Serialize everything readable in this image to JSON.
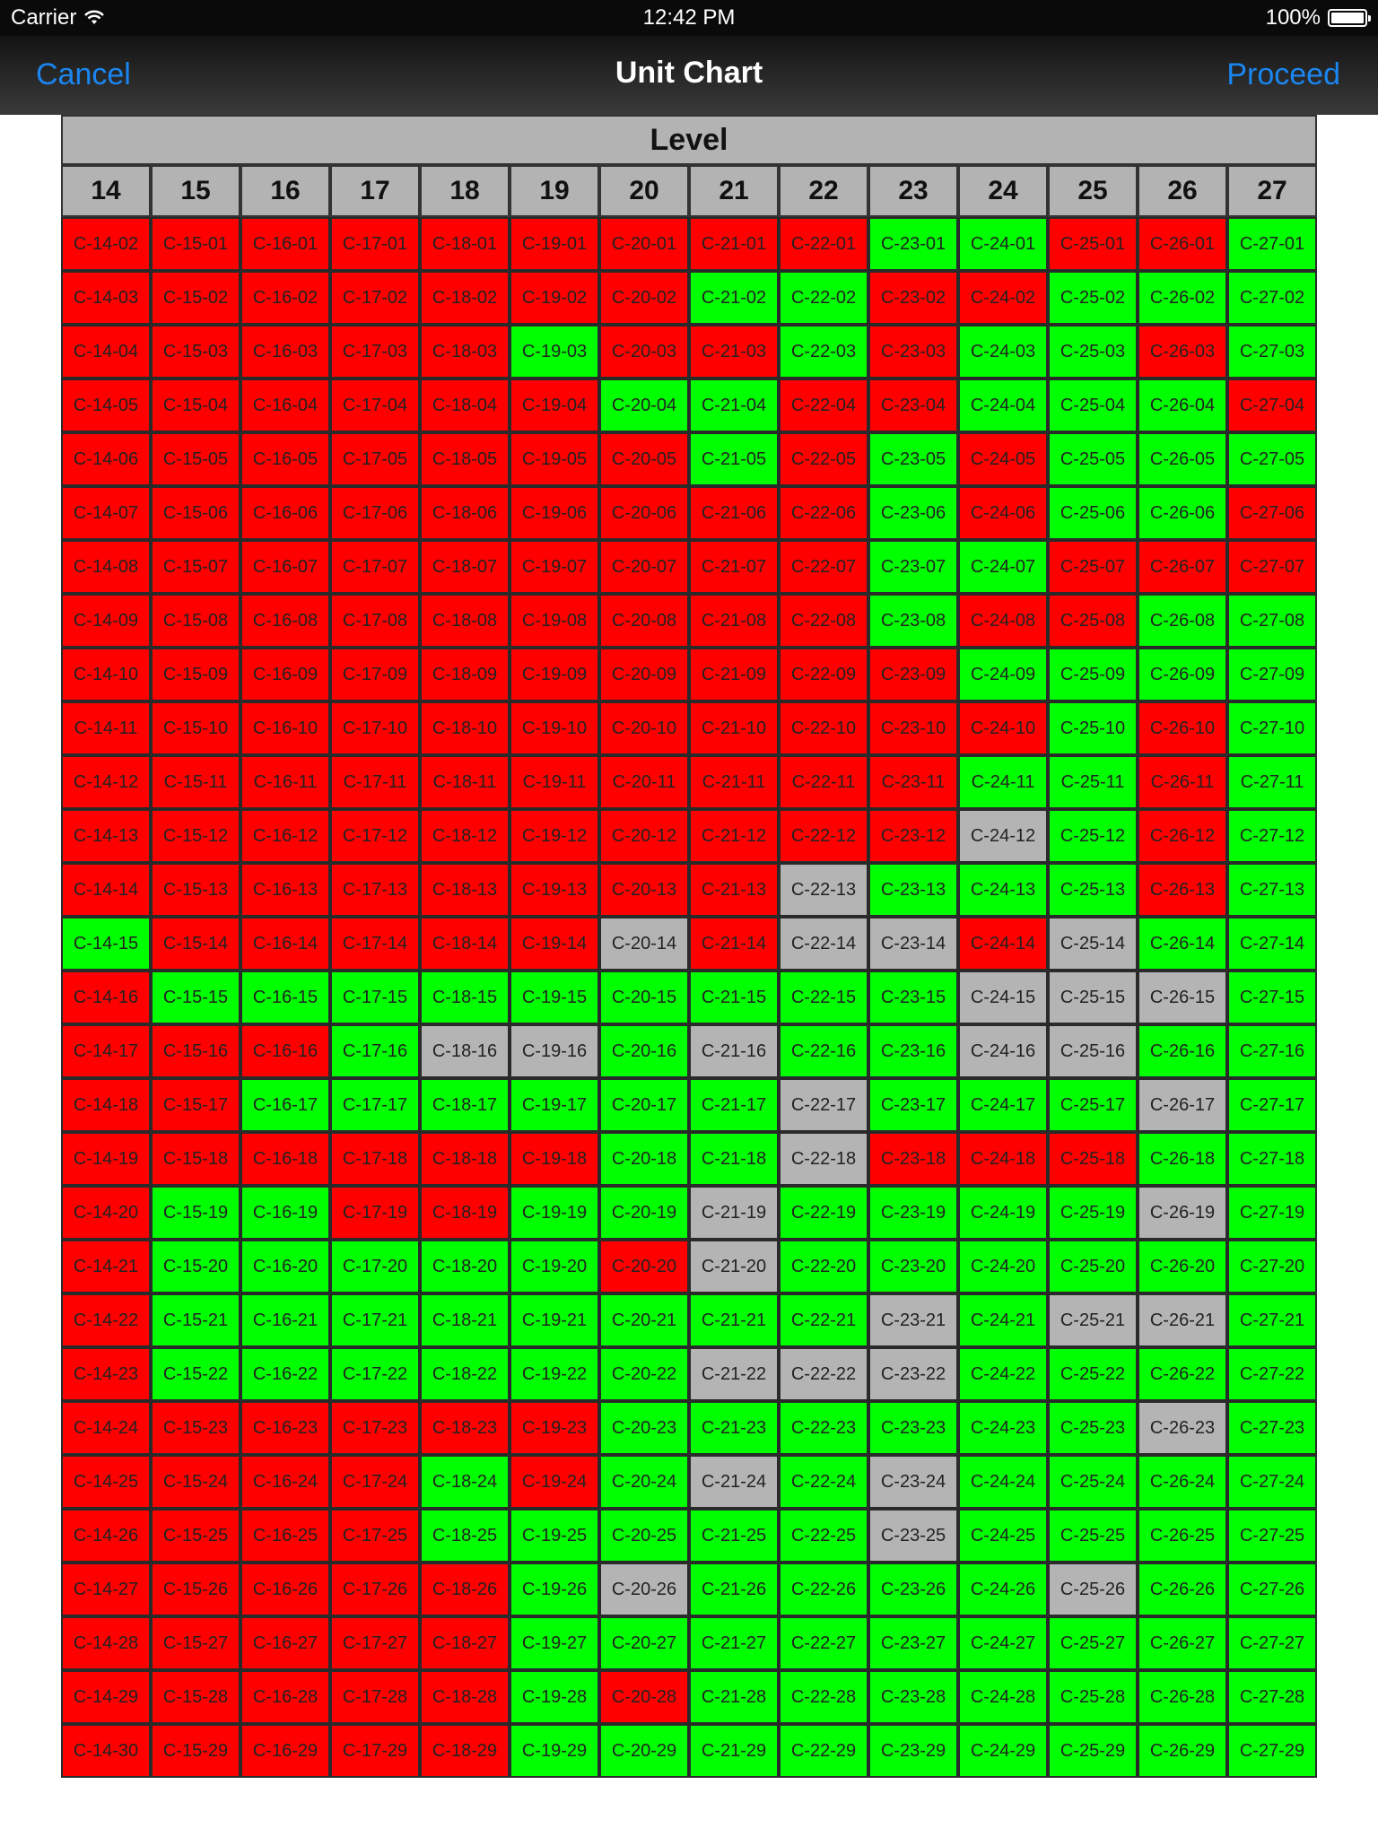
{
  "status_bar": {
    "carrier": "Carrier",
    "time": "12:42 PM",
    "battery": "100%"
  },
  "nav": {
    "cancel": "Cancel",
    "title": "Unit Chart",
    "proceed": "Proceed"
  },
  "chart": {
    "header": "Level",
    "columns": [
      "14",
      "15",
      "16",
      "17",
      "18",
      "19",
      "20",
      "21",
      "22",
      "23",
      "24",
      "25",
      "26",
      "27"
    ],
    "status_legend": {
      "r": "#ff0000",
      "g": "#00ff00",
      "y": "#b4b4b4"
    },
    "rows": [
      {
        "units": [
          "C-14-02",
          "C-15-01",
          "C-16-01",
          "C-17-01",
          "C-18-01",
          "C-19-01",
          "C-20-01",
          "C-21-01",
          "C-22-01",
          "C-23-01",
          "C-24-01",
          "C-25-01",
          "C-26-01",
          "C-27-01"
        ],
        "status": "rrrrrrrrrggrrg"
      },
      {
        "units": [
          "C-14-03",
          "C-15-02",
          "C-16-02",
          "C-17-02",
          "C-18-02",
          "C-19-02",
          "C-20-02",
          "C-21-02",
          "C-22-02",
          "C-23-02",
          "C-24-02",
          "C-25-02",
          "C-26-02",
          "C-27-02"
        ],
        "status": "rrrrrrrggrrggg"
      },
      {
        "units": [
          "C-14-04",
          "C-15-03",
          "C-16-03",
          "C-17-03",
          "C-18-03",
          "C-19-03",
          "C-20-03",
          "C-21-03",
          "C-22-03",
          "C-23-03",
          "C-24-03",
          "C-25-03",
          "C-26-03",
          "C-27-03"
        ],
        "status": "rrrrrgrrgrggrg"
      },
      {
        "units": [
          "C-14-05",
          "C-15-04",
          "C-16-04",
          "C-17-04",
          "C-18-04",
          "C-19-04",
          "C-20-04",
          "C-21-04",
          "C-22-04",
          "C-23-04",
          "C-24-04",
          "C-25-04",
          "C-26-04",
          "C-27-04"
        ],
        "status": "rrrrrrggrrgggr"
      },
      {
        "units": [
          "C-14-06",
          "C-15-05",
          "C-16-05",
          "C-17-05",
          "C-18-05",
          "C-19-05",
          "C-20-05",
          "C-21-05",
          "C-22-05",
          "C-23-05",
          "C-24-05",
          "C-25-05",
          "C-26-05",
          "C-27-05"
        ],
        "status": "rrrrrrrgrgrggg"
      },
      {
        "units": [
          "C-14-07",
          "C-15-06",
          "C-16-06",
          "C-17-06",
          "C-18-06",
          "C-19-06",
          "C-20-06",
          "C-21-06",
          "C-22-06",
          "C-23-06",
          "C-24-06",
          "C-25-06",
          "C-26-06",
          "C-27-06"
        ],
        "status": "rrrrrrrrrgrggr"
      },
      {
        "units": [
          "C-14-08",
          "C-15-07",
          "C-16-07",
          "C-17-07",
          "C-18-07",
          "C-19-07",
          "C-20-07",
          "C-21-07",
          "C-22-07",
          "C-23-07",
          "C-24-07",
          "C-25-07",
          "C-26-07",
          "C-27-07"
        ],
        "status": "rrrrrrrrrggrrr"
      },
      {
        "units": [
          "C-14-09",
          "C-15-08",
          "C-16-08",
          "C-17-08",
          "C-18-08",
          "C-19-08",
          "C-20-08",
          "C-21-08",
          "C-22-08",
          "C-23-08",
          "C-24-08",
          "C-25-08",
          "C-26-08",
          "C-27-08"
        ],
        "status": "rrrrrrrrrgrrgg"
      },
      {
        "units": [
          "C-14-10",
          "C-15-09",
          "C-16-09",
          "C-17-09",
          "C-18-09",
          "C-19-09",
          "C-20-09",
          "C-21-09",
          "C-22-09",
          "C-23-09",
          "C-24-09",
          "C-25-09",
          "C-26-09",
          "C-27-09"
        ],
        "status": "rrrrrrrrrrgggg"
      },
      {
        "units": [
          "C-14-11",
          "C-15-10",
          "C-16-10",
          "C-17-10",
          "C-18-10",
          "C-19-10",
          "C-20-10",
          "C-21-10",
          "C-22-10",
          "C-23-10",
          "C-24-10",
          "C-25-10",
          "C-26-10",
          "C-27-10"
        ],
        "status": "rrrrrrrrrrrgrg"
      },
      {
        "units": [
          "C-14-12",
          "C-15-11",
          "C-16-11",
          "C-17-11",
          "C-18-11",
          "C-19-11",
          "C-20-11",
          "C-21-11",
          "C-22-11",
          "C-23-11",
          "C-24-11",
          "C-25-11",
          "C-26-11",
          "C-27-11"
        ],
        "status": "rrrrrrrrrrggrg"
      },
      {
        "units": [
          "C-14-13",
          "C-15-12",
          "C-16-12",
          "C-17-12",
          "C-18-12",
          "C-19-12",
          "C-20-12",
          "C-21-12",
          "C-22-12",
          "C-23-12",
          "C-24-12",
          "C-25-12",
          "C-26-12",
          "C-27-12"
        ],
        "status": "rrrrrrrrrrygrg"
      },
      {
        "units": [
          "C-14-14",
          "C-15-13",
          "C-16-13",
          "C-17-13",
          "C-18-13",
          "C-19-13",
          "C-20-13",
          "C-21-13",
          "C-22-13",
          "C-23-13",
          "C-24-13",
          "C-25-13",
          "C-26-13",
          "C-27-13"
        ],
        "status": "rrrrrrrrygggrg"
      },
      {
        "units": [
          "C-14-15",
          "C-15-14",
          "C-16-14",
          "C-17-14",
          "C-18-14",
          "C-19-14",
          "C-20-14",
          "C-21-14",
          "C-22-14",
          "C-23-14",
          "C-24-14",
          "C-25-14",
          "C-26-14",
          "C-27-14"
        ],
        "status": "grrrrryryyrygg"
      },
      {
        "units": [
          "C-14-16",
          "C-15-15",
          "C-16-15",
          "C-17-15",
          "C-18-15",
          "C-19-15",
          "C-20-15",
          "C-21-15",
          "C-22-15",
          "C-23-15",
          "C-24-15",
          "C-25-15",
          "C-26-15",
          "C-27-15"
        ],
        "status": "rgggggggggyyyg"
      },
      {
        "units": [
          "C-14-17",
          "C-15-16",
          "C-16-16",
          "C-17-16",
          "C-18-16",
          "C-19-16",
          "C-20-16",
          "C-21-16",
          "C-22-16",
          "C-23-16",
          "C-24-16",
          "C-25-16",
          "C-26-16",
          "C-27-16"
        ],
        "status": "rrrgyygyggyygg"
      },
      {
        "units": [
          "C-14-18",
          "C-15-17",
          "C-16-17",
          "C-17-17",
          "C-18-17",
          "C-19-17",
          "C-20-17",
          "C-21-17",
          "C-22-17",
          "C-23-17",
          "C-24-17",
          "C-25-17",
          "C-26-17",
          "C-27-17"
        ],
        "status": "rrggggggygggyg"
      },
      {
        "units": [
          "C-14-19",
          "C-15-18",
          "C-16-18",
          "C-17-18",
          "C-18-18",
          "C-19-18",
          "C-20-18",
          "C-21-18",
          "C-22-18",
          "C-23-18",
          "C-24-18",
          "C-25-18",
          "C-26-18",
          "C-27-18"
        ],
        "status": "rrrrrrggyrrrgg"
      },
      {
        "units": [
          "C-14-20",
          "C-15-19",
          "C-16-19",
          "C-17-19",
          "C-18-19",
          "C-19-19",
          "C-20-19",
          "C-21-19",
          "C-22-19",
          "C-23-19",
          "C-24-19",
          "C-25-19",
          "C-26-19",
          "C-27-19"
        ],
        "status": "rggrrggyggggyg"
      },
      {
        "units": [
          "C-14-21",
          "C-15-20",
          "C-16-20",
          "C-17-20",
          "C-18-20",
          "C-19-20",
          "C-20-20",
          "C-21-20",
          "C-22-20",
          "C-23-20",
          "C-24-20",
          "C-25-20",
          "C-26-20",
          "C-27-20"
        ],
        "status": "rgggggrygggggg"
      },
      {
        "units": [
          "C-14-22",
          "C-15-21",
          "C-16-21",
          "C-17-21",
          "C-18-21",
          "C-19-21",
          "C-20-21",
          "C-21-21",
          "C-22-21",
          "C-23-21",
          "C-24-21",
          "C-25-21",
          "C-26-21",
          "C-27-21"
        ],
        "status": "rggggggggygyyg"
      },
      {
        "units": [
          "C-14-23",
          "C-15-22",
          "C-16-22",
          "C-17-22",
          "C-18-22",
          "C-19-22",
          "C-20-22",
          "C-21-22",
          "C-22-22",
          "C-23-22",
          "C-24-22",
          "C-25-22",
          "C-26-22",
          "C-27-22"
        ],
        "status": "rggggggyyygggg"
      },
      {
        "units": [
          "C-14-24",
          "C-15-23",
          "C-16-23",
          "C-17-23",
          "C-18-23",
          "C-19-23",
          "C-20-23",
          "C-21-23",
          "C-22-23",
          "C-23-23",
          "C-24-23",
          "C-25-23",
          "C-26-23",
          "C-27-23"
        ],
        "status": "rrrrrrggggggyg"
      },
      {
        "units": [
          "C-14-25",
          "C-15-24",
          "C-16-24",
          "C-17-24",
          "C-18-24",
          "C-19-24",
          "C-20-24",
          "C-21-24",
          "C-22-24",
          "C-23-24",
          "C-24-24",
          "C-25-24",
          "C-26-24",
          "C-27-24"
        ],
        "status": "rrrrgrgygygggg"
      },
      {
        "units": [
          "C-14-26",
          "C-15-25",
          "C-16-25",
          "C-17-25",
          "C-18-25",
          "C-19-25",
          "C-20-25",
          "C-21-25",
          "C-22-25",
          "C-23-25",
          "C-24-25",
          "C-25-25",
          "C-26-25",
          "C-27-25"
        ],
        "status": "rrrrgggggygggg"
      },
      {
        "units": [
          "C-14-27",
          "C-15-26",
          "C-16-26",
          "C-17-26",
          "C-18-26",
          "C-19-26",
          "C-20-26",
          "C-21-26",
          "C-22-26",
          "C-23-26",
          "C-24-26",
          "C-25-26",
          "C-26-26",
          "C-27-26"
        ],
        "status": "rrrrrgyggggygg"
      },
      {
        "units": [
          "C-14-28",
          "C-15-27",
          "C-16-27",
          "C-17-27",
          "C-18-27",
          "C-19-27",
          "C-20-27",
          "C-21-27",
          "C-22-27",
          "C-23-27",
          "C-24-27",
          "C-25-27",
          "C-26-27",
          "C-27-27"
        ],
        "status": "rrrrrggggggggg"
      },
      {
        "units": [
          "C-14-29",
          "C-15-28",
          "C-16-28",
          "C-17-28",
          "C-18-28",
          "C-19-28",
          "C-20-28",
          "C-21-28",
          "C-22-28",
          "C-23-28",
          "C-24-28",
          "C-25-28",
          "C-26-28",
          "C-27-28"
        ],
        "status": "rrrrrgrggggggg"
      },
      {
        "units": [
          "C-14-30",
          "C-15-29",
          "C-16-29",
          "C-17-29",
          "C-18-29",
          "C-19-29",
          "C-20-29",
          "C-21-29",
          "C-22-29",
          "C-23-29",
          "C-24-29",
          "C-25-29",
          "C-26-29",
          "C-27-29"
        ],
        "status": "rrrrrggggggggg"
      }
    ]
  }
}
